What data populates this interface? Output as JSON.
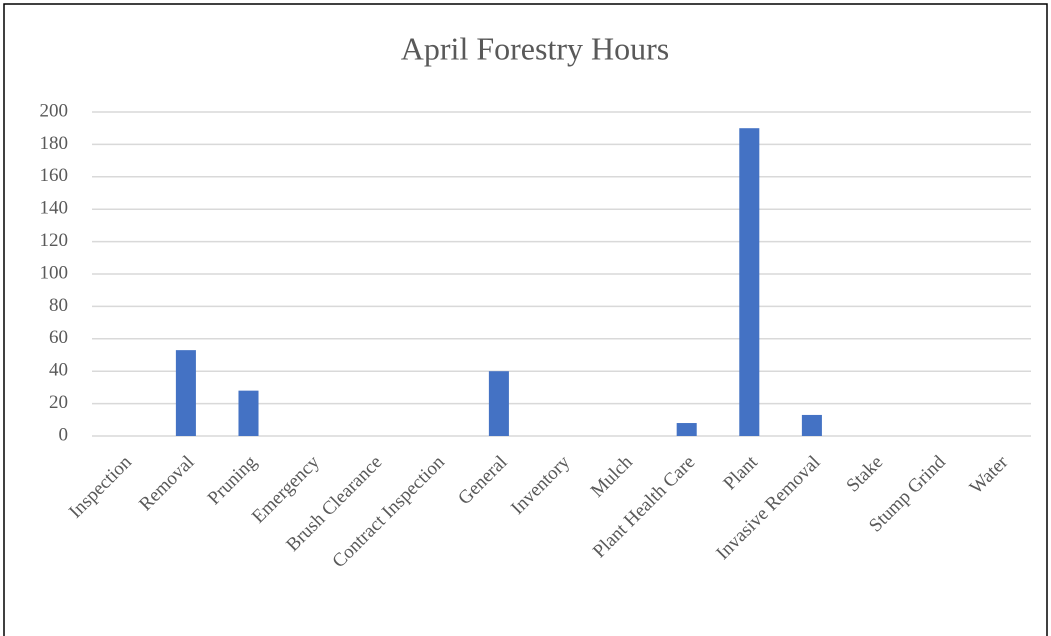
{
  "chart_data": {
    "type": "bar",
    "title": "April Forestry Hours",
    "categories": [
      "Inspection",
      "Removal",
      "Pruning",
      "Emergency",
      "Brush Clearance",
      "Contract Inspection",
      "General",
      "Inventory",
      "Mulch",
      "Plant Health Care",
      "Plant",
      "Invasive Removal",
      "Stake",
      "Stump Grind",
      "Water"
    ],
    "values": [
      0,
      53,
      28,
      0,
      0,
      0,
      40,
      0,
      0,
      8,
      190,
      13,
      0,
      0,
      0
    ],
    "color": "#4472c4",
    "ylim": [
      0,
      200
    ],
    "yticks": [
      0,
      20,
      40,
      60,
      80,
      100,
      120,
      140,
      160,
      180,
      200
    ],
    "grid": true
  }
}
